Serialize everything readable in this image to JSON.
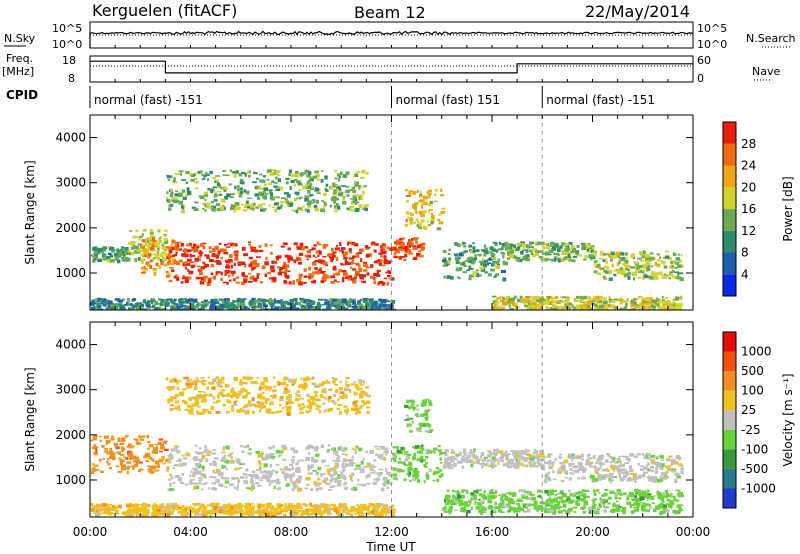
{
  "header": {
    "station": "Kerguelen (fitACF)",
    "beam": "Beam 12",
    "date": "22/May/2014"
  },
  "top_panels": {
    "nsky_label": "N.Sky",
    "nsearch_label": "N.Search",
    "freq_label_1": "Freq.",
    "freq_label_2": "[MHz]",
    "nave_label": "Nave",
    "cpid_label": "CPID",
    "nsky_ticks": [
      "10^5",
      "10^0"
    ],
    "nsearch_ticks": [
      "10^5",
      "10^0"
    ],
    "freq_ticks": [
      "18",
      "8"
    ],
    "nave_ticks": [
      "60",
      "0"
    ],
    "cpid_segments": [
      {
        "start": 0,
        "end": 12,
        "label": "normal (fast) -151"
      },
      {
        "start": 12,
        "end": 18,
        "label": "normal (fast) 151"
      },
      {
        "start": 18,
        "end": 24,
        "label": "normal (fast) -151"
      }
    ],
    "freq_steps": [
      {
        "start": 0,
        "end": 3,
        "level": 0.8
      },
      {
        "start": 3,
        "end": 17,
        "level": 0.35
      },
      {
        "start": 17,
        "end": 24,
        "level": 0.7
      }
    ]
  },
  "chart_data": [
    {
      "type": "heatmap",
      "name": "power",
      "ylabel": "Slant Range [km]",
      "xlabel": "Time UT",
      "xlim": [
        0,
        24
      ],
      "ylim": [
        180,
        4500
      ],
      "yticks": [
        "1000",
        "2000",
        "3000",
        "4000"
      ],
      "xticks": [
        "00:00",
        "04:00",
        "08:00",
        "12:00",
        "16:00",
        "20:00",
        "00:00"
      ],
      "colorbar": {
        "title": "Power [dB]",
        "ticks": [
          "4",
          "8",
          "12",
          "16",
          "20",
          "24",
          "28"
        ],
        "colors": [
          "#0a28e6",
          "#1e5fb4",
          "#2f8a6e",
          "#6aaa52",
          "#d2d22d",
          "#f0a515",
          "#f06a10",
          "#e61e0a"
        ]
      },
      "regions": [
        {
          "t0": 0.0,
          "t1": 1.5,
          "r0": 1300,
          "r1": 1600,
          "v": 10
        },
        {
          "t0": 1.5,
          "t1": 3.0,
          "r0": 1300,
          "r1": 2000,
          "v": 14
        },
        {
          "t0": 2.0,
          "t1": 3.5,
          "r0": 1000,
          "r1": 1800,
          "v": 20
        },
        {
          "t0": 3.0,
          "t1": 12.0,
          "r0": 800,
          "r1": 1700,
          "v": 27
        },
        {
          "t0": 3.0,
          "t1": 11.0,
          "r0": 2400,
          "r1": 3300,
          "v": 12
        },
        {
          "t0": 12.0,
          "t1": 13.2,
          "r0": 1300,
          "r1": 1800,
          "v": 26
        },
        {
          "t0": 12.5,
          "t1": 14.0,
          "r0": 2000,
          "r1": 2900,
          "v": 18
        },
        {
          "t0": 14.0,
          "t1": 16.5,
          "r0": 900,
          "r1": 1700,
          "v": 10
        },
        {
          "t0": 16.5,
          "t1": 20.0,
          "r0": 1300,
          "r1": 1700,
          "v": 12
        },
        {
          "t0": 20.0,
          "t1": 23.5,
          "r0": 900,
          "r1": 1500,
          "v": 14
        },
        {
          "t0": 16.0,
          "t1": 23.5,
          "r0": 200,
          "r1": 500,
          "v": 16
        },
        {
          "t0": 0.0,
          "t1": 12.0,
          "r0": 200,
          "r1": 450,
          "v": 8
        }
      ]
    },
    {
      "type": "heatmap",
      "name": "velocity",
      "ylabel": "Slant Range [km]",
      "xlabel": "Time UT",
      "xlim": [
        0,
        24
      ],
      "ylim": [
        180,
        4500
      ],
      "yticks": [
        "1000",
        "2000",
        "3000",
        "4000"
      ],
      "xticks": [
        "00:00",
        "04:00",
        "08:00",
        "12:00",
        "16:00",
        "20:00",
        "00:00"
      ],
      "colorbar": {
        "title": "Velocity [m s⁻¹]",
        "ticks": [
          "1000",
          "500",
          "100",
          "25",
          "-25",
          "-100",
          "-500",
          "-1000"
        ],
        "colors": [
          "#1e3cc8",
          "#2a7c8a",
          "#3a9a3a",
          "#6ad23a",
          "#c0c0c0",
          "#f0c020",
          "#f09020",
          "#f05010",
          "#e60a0a"
        ]
      },
      "regions": [
        {
          "t0": 0.0,
          "t1": 3.0,
          "r0": 1200,
          "r1": 2000,
          "v": 6
        },
        {
          "t0": 3.0,
          "t1": 12.0,
          "r0": 800,
          "r1": 1800,
          "v": 4
        },
        {
          "t0": 3.0,
          "t1": 11.0,
          "r0": 2500,
          "r1": 3300,
          "v": 5
        },
        {
          "t0": 12.0,
          "t1": 14.0,
          "r0": 1000,
          "r1": 1800,
          "v": 3
        },
        {
          "t0": 12.5,
          "t1": 13.5,
          "r0": 2100,
          "r1": 2800,
          "v": 3
        },
        {
          "t0": 14.0,
          "t1": 18.0,
          "r0": 1300,
          "r1": 1700,
          "v": 4
        },
        {
          "t0": 14.0,
          "t1": 23.5,
          "r0": 300,
          "r1": 800,
          "v": 3
        },
        {
          "t0": 18.0,
          "t1": 23.5,
          "r0": 1000,
          "r1": 1600,
          "v": 4
        },
        {
          "t0": 0.0,
          "t1": 12.0,
          "r0": 250,
          "r1": 500,
          "v": 5
        }
      ]
    }
  ]
}
